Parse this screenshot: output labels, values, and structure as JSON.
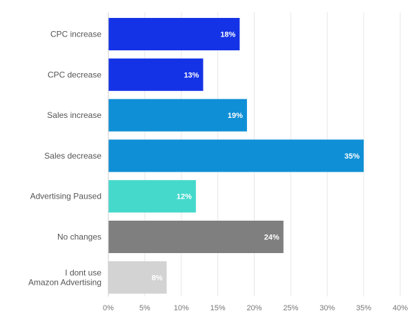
{
  "chart_data": {
    "type": "bar",
    "orientation": "horizontal",
    "title": "",
    "xlabel": "",
    "ylabel": "",
    "categories": [
      "CPC increase",
      "CPC decrease",
      "Sales increase",
      "Sales decrease",
      "Advertising Paused",
      "No changes",
      "I dont use Amazon Advertising"
    ],
    "category_lines": [
      [
        "CPC increase"
      ],
      [
        "CPC decrease"
      ],
      [
        "Sales increase"
      ],
      [
        "Sales decrease"
      ],
      [
        "Advertising Paused"
      ],
      [
        "No changes"
      ],
      [
        "I dont use",
        "Amazon Advertising"
      ]
    ],
    "values": [
      18,
      13,
      19,
      35,
      12,
      24,
      8
    ],
    "data_labels": [
      "18%",
      "13%",
      "19%",
      "35%",
      "12%",
      "24%",
      "8%"
    ],
    "colors": [
      "#1533e6",
      "#1533e6",
      "#0f8fd6",
      "#0f8fd6",
      "#45d9cc",
      "#7f7f7f",
      "#d3d3d3"
    ],
    "xlim": [
      0,
      40
    ],
    "xticks": [
      0,
      5,
      10,
      15,
      20,
      25,
      30,
      35,
      40
    ],
    "xtick_labels": [
      "0%",
      "5%",
      "10%",
      "15%",
      "20%",
      "25%",
      "30%",
      "35%",
      "40%"
    ],
    "grid": true,
    "legend": "none"
  }
}
